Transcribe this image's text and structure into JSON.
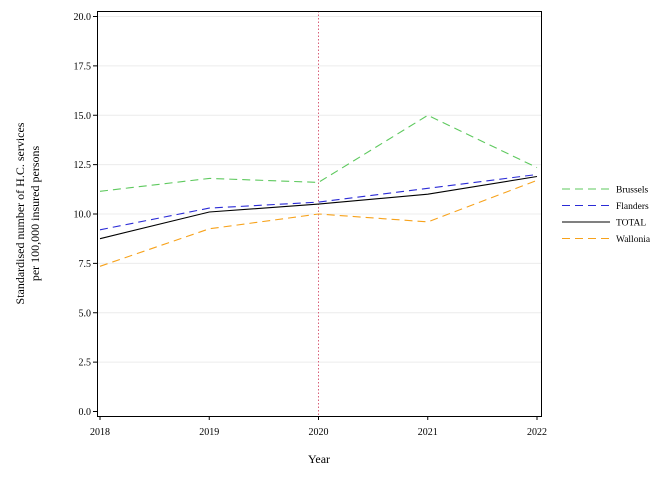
{
  "chart_data": {
    "type": "line",
    "xlabel": "Year",
    "ylabel": [
      "Standardised number of H.C. services",
      "per 100,000 insured persons"
    ],
    "x": [
      2018,
      2019,
      2020,
      2021,
      2022
    ],
    "x_tick_labels": [
      "2018",
      "2019",
      "2020",
      "2021",
      "2022"
    ],
    "ylim": [
      0,
      20
    ],
    "y_ticks": [
      0,
      2.5,
      5,
      7.5,
      10,
      12.5,
      15,
      17.5,
      20
    ],
    "y_tick_labels": [
      "0.0",
      "2.5",
      "5.0",
      "7.5",
      "10.0",
      "12.5",
      "15.0",
      "17.5",
      "20.0"
    ],
    "grid": "horizontal",
    "reference_line_x": 2020,
    "legend_position": "right",
    "series": [
      {
        "name": "Brussels",
        "values": [
          11.15,
          11.8,
          11.6,
          15.0,
          12.35
        ],
        "color": "#5ec95e",
        "dash": "dashed"
      },
      {
        "name": "Flanders",
        "values": [
          9.2,
          10.3,
          10.6,
          11.3,
          12.0
        ],
        "color": "#2b2bd6",
        "dash": "dashed"
      },
      {
        "name": "TOTAL",
        "values": [
          8.75,
          10.1,
          10.5,
          11.0,
          11.9
        ],
        "color": "#000000",
        "dash": "solid"
      },
      {
        "name": "Wallonia",
        "values": [
          7.35,
          9.25,
          10.0,
          9.6,
          11.7
        ],
        "color": "#f7a21b",
        "dash": "dashed"
      }
    ],
    "reference_line_color": "#d9607a"
  }
}
